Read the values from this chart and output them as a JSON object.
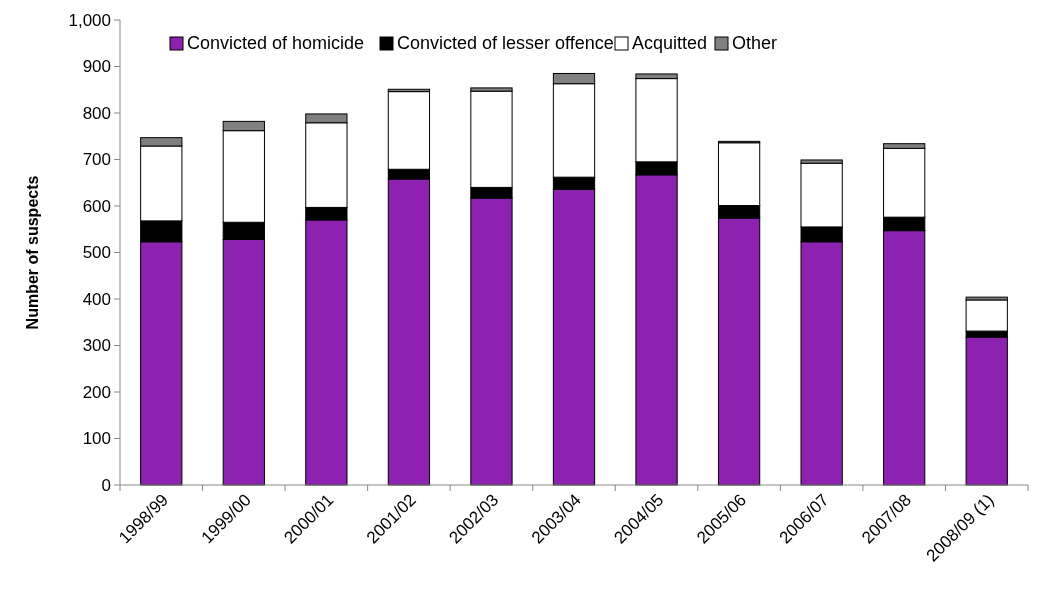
{
  "chart_data": {
    "type": "bar",
    "stacked": true,
    "ylabel": "Number of suspects",
    "categories": [
      "1998/99",
      "1999/00",
      "2000/01",
      "2001/02",
      "2002/03",
      "2003/04",
      "2004/05",
      "2005/06",
      "2006/07",
      "2007/08",
      "2008/09 (1)"
    ],
    "series": [
      {
        "name": "Convicted of homicide",
        "color": "#8e22b0",
        "values": [
          523,
          528,
          570,
          658,
          617,
          636,
          667,
          574,
          523,
          547,
          318
        ]
      },
      {
        "name": "Convicted of lesser offence",
        "color": "#000000",
        "values": [
          45,
          37,
          27,
          21,
          23,
          26,
          28,
          27,
          32,
          29,
          13
        ]
      },
      {
        "name": "Acquitted",
        "color": "#ffffff",
        "values": [
          161,
          197,
          182,
          167,
          207,
          201,
          179,
          135,
          137,
          148,
          67
        ]
      },
      {
        "name": "Other",
        "color": "#808080",
        "values": [
          18,
          20,
          19,
          5,
          7,
          22,
          10,
          3,
          7,
          10,
          6
        ]
      }
    ],
    "ylim": [
      0,
      1000
    ],
    "yticks": [
      0,
      100,
      200,
      300,
      400,
      500,
      600,
      700,
      800,
      900,
      {
        "value": 1000,
        "label": "1,000"
      }
    ],
    "legend": "top",
    "grid": false
  }
}
